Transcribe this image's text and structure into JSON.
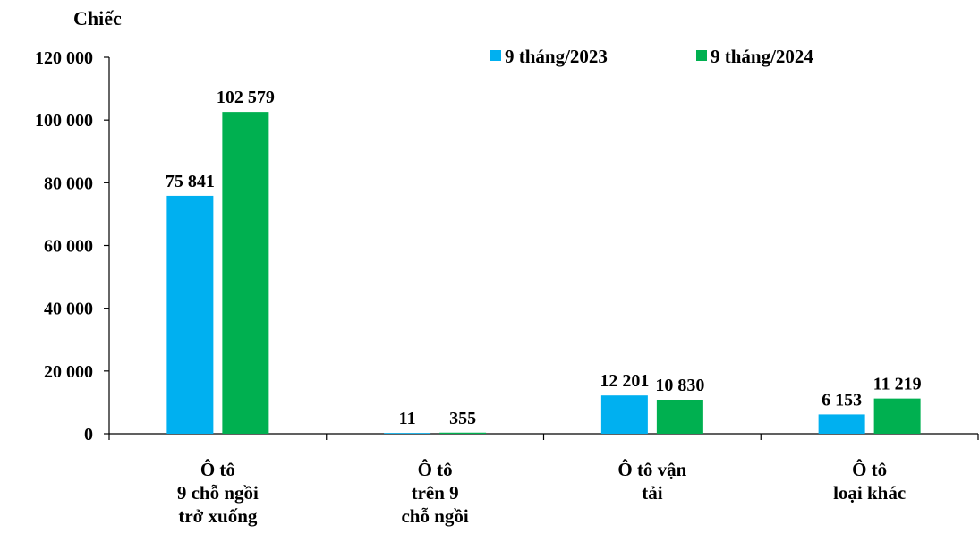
{
  "chart_data": {
    "type": "bar",
    "ylabel": "Chiếc",
    "ylim": [
      0,
      120000
    ],
    "yticks": [
      0,
      20000,
      40000,
      60000,
      80000,
      100000,
      120000
    ],
    "ytick_labels": [
      "0",
      "20 000",
      "40 000",
      "60 000",
      "80 000",
      "100 000",
      "120 000"
    ],
    "categories": [
      [
        "Ô tô",
        "9 chỗ ngồi",
        "trở xuống"
      ],
      [
        "Ô tô",
        "trên 9",
        "chỗ ngồi"
      ],
      [
        "Ô tô vận",
        "tải"
      ],
      [
        "Ô tô",
        "loại khác"
      ]
    ],
    "series": [
      {
        "name": "9 tháng/2023",
        "color": "#00B0F0",
        "values": [
          75841,
          11,
          12201,
          6153
        ],
        "labels": [
          "75 841",
          "11",
          "12 201",
          "6 153"
        ]
      },
      {
        "name": "9 tháng/2024",
        "color": "#00B050",
        "values": [
          102579,
          355,
          10830,
          11219
        ],
        "labels": [
          "102 579",
          "355",
          "10 830",
          "11 219"
        ]
      }
    ],
    "legend_position": "top-right",
    "grid": false
  }
}
